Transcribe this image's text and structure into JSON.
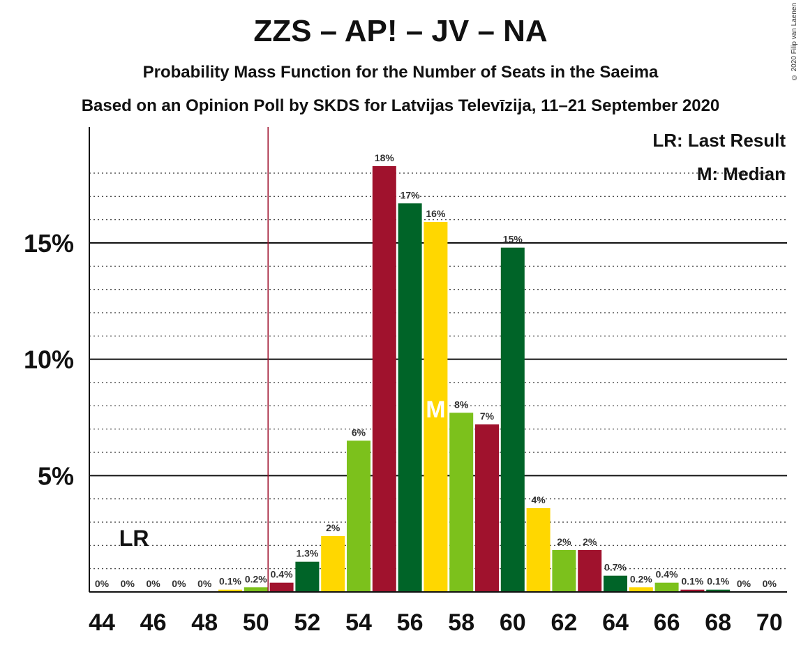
{
  "header": {
    "title": "ZZS – AP! – JV – NA",
    "subtitle1": "Probability Mass Function for the Number of Seats in the Saeima",
    "subtitle2": "Based on an Opinion Poll by SKDS for Latvijas Televīzija, 11–21 September 2020",
    "copyright": "© 2020 Filip van Laenen"
  },
  "legend": {
    "lr": "LR: Last Result",
    "median": "M: Median"
  },
  "markers": {
    "lr_label": "LR",
    "lr_seat": 51,
    "median_label": "M",
    "median_seat": 57
  },
  "colors": {
    "green_dark": "#006428",
    "green_light": "#7cc11c",
    "yellow": "#ffd700",
    "crimson": "#a0122d",
    "lr_line": "#a0122d"
  },
  "chart_data": {
    "type": "bar",
    "title": "ZZS – AP! – JV – NA",
    "xlabel": "",
    "ylabel": "",
    "ylim": [
      0,
      19
    ],
    "x_tick_labels": [
      "44",
      "46",
      "48",
      "50",
      "52",
      "54",
      "56",
      "58",
      "60",
      "62",
      "64",
      "66",
      "68",
      "70"
    ],
    "y_tick_labels": [
      "5%",
      "10%",
      "15%"
    ],
    "seats": [
      44,
      45,
      46,
      47,
      48,
      49,
      50,
      51,
      52,
      53,
      54,
      55,
      56,
      57,
      58,
      59,
      60,
      61,
      62,
      63,
      64,
      65,
      66,
      67,
      68,
      69,
      70
    ],
    "values": [
      0,
      0,
      0,
      0,
      0,
      0.1,
      0.2,
      0.4,
      1.3,
      2.4,
      6.5,
      18.3,
      16.7,
      15.9,
      7.7,
      7.2,
      14.8,
      3.6,
      1.8,
      1.8,
      0.7,
      0.2,
      0.4,
      0.1,
      0.1,
      0,
      0
    ],
    "labels": [
      "0%",
      "0%",
      "0%",
      "0%",
      "0%",
      "0.1%",
      "0.2%",
      "0.4%",
      "1.3%",
      "2%",
      "6%",
      "18%",
      "17%",
      "16%",
      "8%",
      "7%",
      "15%",
      "4%",
      "2%",
      "2%",
      "0.7%",
      "0.2%",
      "0.4%",
      "0.1%",
      "0.1%",
      "0%",
      "0%"
    ],
    "bar_colors": [
      "green_dark",
      "yellow",
      "green_light",
      "crimson",
      "green_dark",
      "yellow",
      "green_light",
      "crimson",
      "green_dark",
      "yellow",
      "green_light",
      "crimson",
      "green_dark",
      "yellow",
      "green_light",
      "crimson",
      "green_dark",
      "yellow",
      "green_light",
      "crimson",
      "green_dark",
      "yellow",
      "green_light",
      "crimson",
      "green_dark",
      "yellow",
      "green_light"
    ],
    "grid": true
  }
}
